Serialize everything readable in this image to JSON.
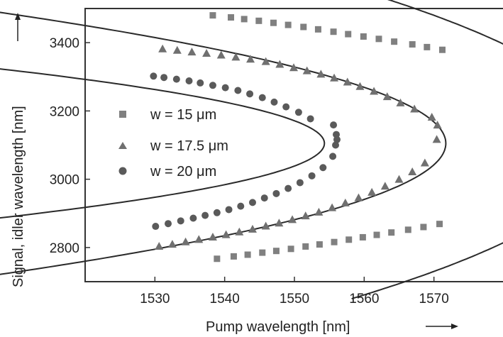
{
  "chart_data": {
    "type": "scatter",
    "xlabel": "Pump wavelength [nm]",
    "ylabel": "Signal, idler wavelength [nm]",
    "xlim": [
      1520,
      1580
    ],
    "ylim": [
      2700,
      3500
    ],
    "x_ticks": [
      "1530",
      "1540",
      "1550",
      "1560",
      "1570"
    ],
    "y_ticks": [
      "2800",
      "3000",
      "3200",
      "3400"
    ],
    "x_tick_values": [
      1530,
      1540,
      1550,
      1560,
      1570
    ],
    "y_tick_values": [
      2800,
      3000,
      3200,
      3400
    ],
    "grid": false,
    "legend_position": "left",
    "series": [
      {
        "name": "w = 15 μm",
        "marker": "square",
        "color": "#808080",
        "fit": {
          "x_turn": 1595,
          "y_center": 3105,
          "k": 7.5
        },
        "points": [
          [
            1538.3,
            3480
          ],
          [
            1540.9,
            3474
          ],
          [
            1542.8,
            3469
          ],
          [
            1544.9,
            3464
          ],
          [
            1547.0,
            3458
          ],
          [
            1549.1,
            3452
          ],
          [
            1551.3,
            3446
          ],
          [
            1553.4,
            3439
          ],
          [
            1555.6,
            3432
          ],
          [
            1557.7,
            3425
          ],
          [
            1559.9,
            3418
          ],
          [
            1562.1,
            3411
          ],
          [
            1564.3,
            3403
          ],
          [
            1566.9,
            3395
          ],
          [
            1569.0,
            3387
          ],
          [
            1571.2,
            3379
          ],
          [
            1538.9,
            2767
          ],
          [
            1541.3,
            2774
          ],
          [
            1543.3,
            2779
          ],
          [
            1545.4,
            2785
          ],
          [
            1547.4,
            2790
          ],
          [
            1549.5,
            2796
          ],
          [
            1551.6,
            2803
          ],
          [
            1553.6,
            2809
          ],
          [
            1555.7,
            2816
          ],
          [
            1557.8,
            2823
          ],
          [
            1559.8,
            2830
          ],
          [
            1561.8,
            2837
          ],
          [
            1563.9,
            2844
          ],
          [
            1566.3,
            2852
          ],
          [
            1568.5,
            2860
          ],
          [
            1570.8,
            2869
          ]
        ]
      },
      {
        "name": "w = 17.5 μm",
        "marker": "triangle",
        "color": "#707070",
        "fit": {
          "x_turn": 1571.7,
          "y_center": 3105,
          "k": 4.8
        },
        "points": [
          [
            1531.1,
            3382
          ],
          [
            1533.2,
            3378
          ],
          [
            1535.3,
            3373
          ],
          [
            1537.4,
            3369
          ],
          [
            1539.5,
            3364
          ],
          [
            1541.6,
            3358
          ],
          [
            1543.7,
            3352
          ],
          [
            1545.9,
            3345
          ],
          [
            1547.9,
            3337
          ],
          [
            1549.9,
            3327
          ],
          [
            1551.8,
            3318
          ],
          [
            1553.8,
            3308
          ],
          [
            1555.7,
            3297
          ],
          [
            1557.6,
            3285
          ],
          [
            1559.4,
            3272
          ],
          [
            1561.4,
            3258
          ],
          [
            1563.3,
            3242
          ],
          [
            1565.2,
            3224
          ],
          [
            1567.2,
            3206
          ],
          [
            1569.7,
            3182
          ],
          [
            1570.5,
            3159
          ],
          [
            1570.4,
            3117
          ],
          [
            1530.6,
            2804
          ],
          [
            1532.5,
            2810
          ],
          [
            1534.4,
            2817
          ],
          [
            1536.3,
            2824
          ],
          [
            1538.3,
            2831
          ],
          [
            1540.2,
            2838
          ],
          [
            1542.1,
            2846
          ],
          [
            1544.0,
            2854
          ],
          [
            1545.9,
            2863
          ],
          [
            1547.8,
            2872
          ],
          [
            1549.7,
            2882
          ],
          [
            1551.6,
            2893
          ],
          [
            1553.5,
            2904
          ],
          [
            1555.4,
            2917
          ],
          [
            1557.3,
            2931
          ],
          [
            1559.2,
            2946
          ],
          [
            1561.1,
            2962
          ],
          [
            1563.0,
            2980
          ],
          [
            1565.0,
            3000
          ],
          [
            1566.9,
            3022
          ],
          [
            1568.7,
            3048
          ]
        ]
      },
      {
        "name": "w = 20 μm",
        "marker": "circle",
        "color": "#5a5a5a",
        "fit": {
          "x_turn": 1554.3,
          "y_center": 3105,
          "k": 3.2
        },
        "points": [
          [
            1529.8,
            3302
          ],
          [
            1531.3,
            3298
          ],
          [
            1533.1,
            3293
          ],
          [
            1534.9,
            3288
          ],
          [
            1536.5,
            3282
          ],
          [
            1538.3,
            3275
          ],
          [
            1540.1,
            3268
          ],
          [
            1541.9,
            3260
          ],
          [
            1543.6,
            3250
          ],
          [
            1545.4,
            3239
          ],
          [
            1547.1,
            3226
          ],
          [
            1548.8,
            3212
          ],
          [
            1550.6,
            3196
          ],
          [
            1552.3,
            3177
          ],
          [
            1555.6,
            3159
          ],
          [
            1556.0,
            3131
          ],
          [
            1556.1,
            3116
          ],
          [
            1555.9,
            3100
          ],
          [
            1555.5,
            3067
          ],
          [
            1554.1,
            3034
          ],
          [
            1552.5,
            3010
          ],
          [
            1550.8,
            2990
          ],
          [
            1549.1,
            2973
          ],
          [
            1547.4,
            2958
          ],
          [
            1545.7,
            2945
          ],
          [
            1544.0,
            2932
          ],
          [
            1542.3,
            2921
          ],
          [
            1540.6,
            2911
          ],
          [
            1538.9,
            2902
          ],
          [
            1537.2,
            2894
          ],
          [
            1535.5,
            2886
          ],
          [
            1533.7,
            2878
          ],
          [
            1531.9,
            2870
          ],
          [
            1530.1,
            2862
          ]
        ]
      }
    ]
  }
}
